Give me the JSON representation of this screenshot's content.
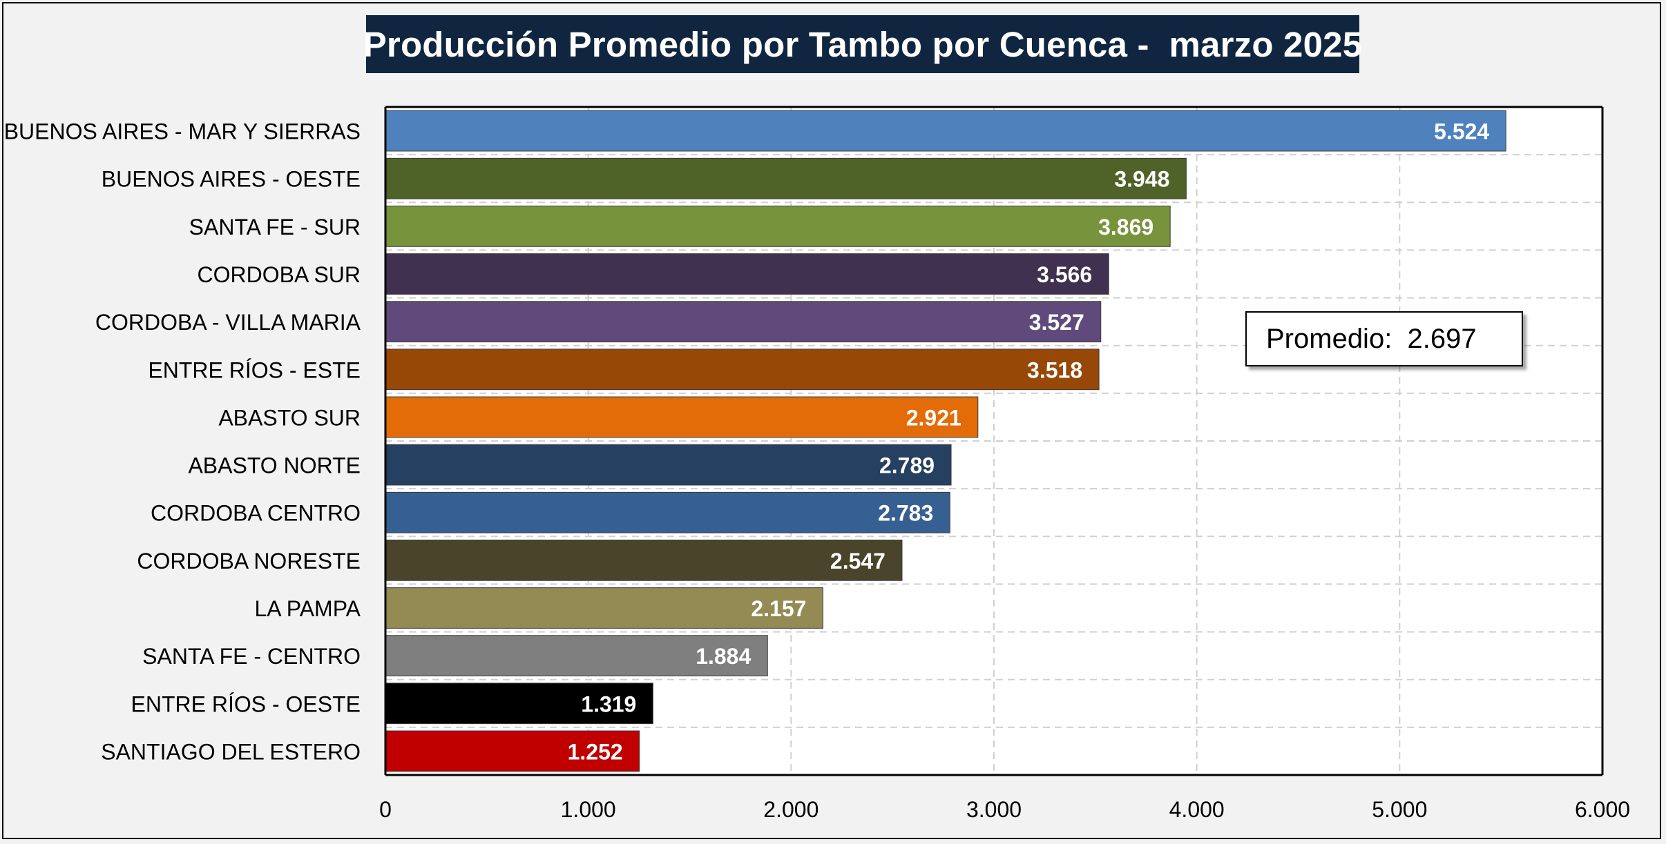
{
  "chart_data": {
    "type": "bar",
    "orientation": "horizontal",
    "title": "Producción Promedio por Tambo por Cuenca -  marzo 2025",
    "categories": [
      "BUENOS AIRES - MAR Y SIERRAS",
      "BUENOS AIRES - OESTE",
      "SANTA FE - SUR",
      "CORDOBA SUR",
      "CORDOBA - VILLA MARIA",
      "ENTRE RÍOS - ESTE",
      "ABASTO SUR",
      "ABASTO NORTE",
      "CORDOBA CENTRO",
      "CORDOBA NORESTE",
      "LA PAMPA",
      "SANTA FE - CENTRO",
      "ENTRE RÍOS - OESTE",
      "SANTIAGO DEL ESTERO"
    ],
    "values": [
      5524,
      3948,
      3869,
      3566,
      3527,
      3518,
      2921,
      2789,
      2783,
      2547,
      2157,
      1884,
      1319,
      1252
    ],
    "value_labels": [
      "5.524",
      "3.948",
      "3.869",
      "3.566",
      "3.527",
      "3.518",
      "2.921",
      "2.789",
      "2.783",
      "2.547",
      "2.157",
      "1.884",
      "1.319",
      "1.252"
    ],
    "colors": [
      "#4f81bd",
      "#4f6228",
      "#77933c",
      "#403151",
      "#604a7b",
      "#974806",
      "#e36c09",
      "#254061",
      "#376092",
      "#4a452a",
      "#948a54",
      "#7f7f7f",
      "#000000",
      "#c00000"
    ],
    "xlim": [
      0,
      6000
    ],
    "xticks": [
      0,
      1000,
      2000,
      3000,
      4000,
      5000,
      6000
    ],
    "xtick_labels": [
      "0",
      "1.000",
      "2.000",
      "3.000",
      "4.000",
      "5.000",
      "6.000"
    ],
    "grid": true,
    "xlabel": "",
    "ylabel": "",
    "annotation": {
      "label": "Promedio:",
      "value": "2.697"
    }
  }
}
